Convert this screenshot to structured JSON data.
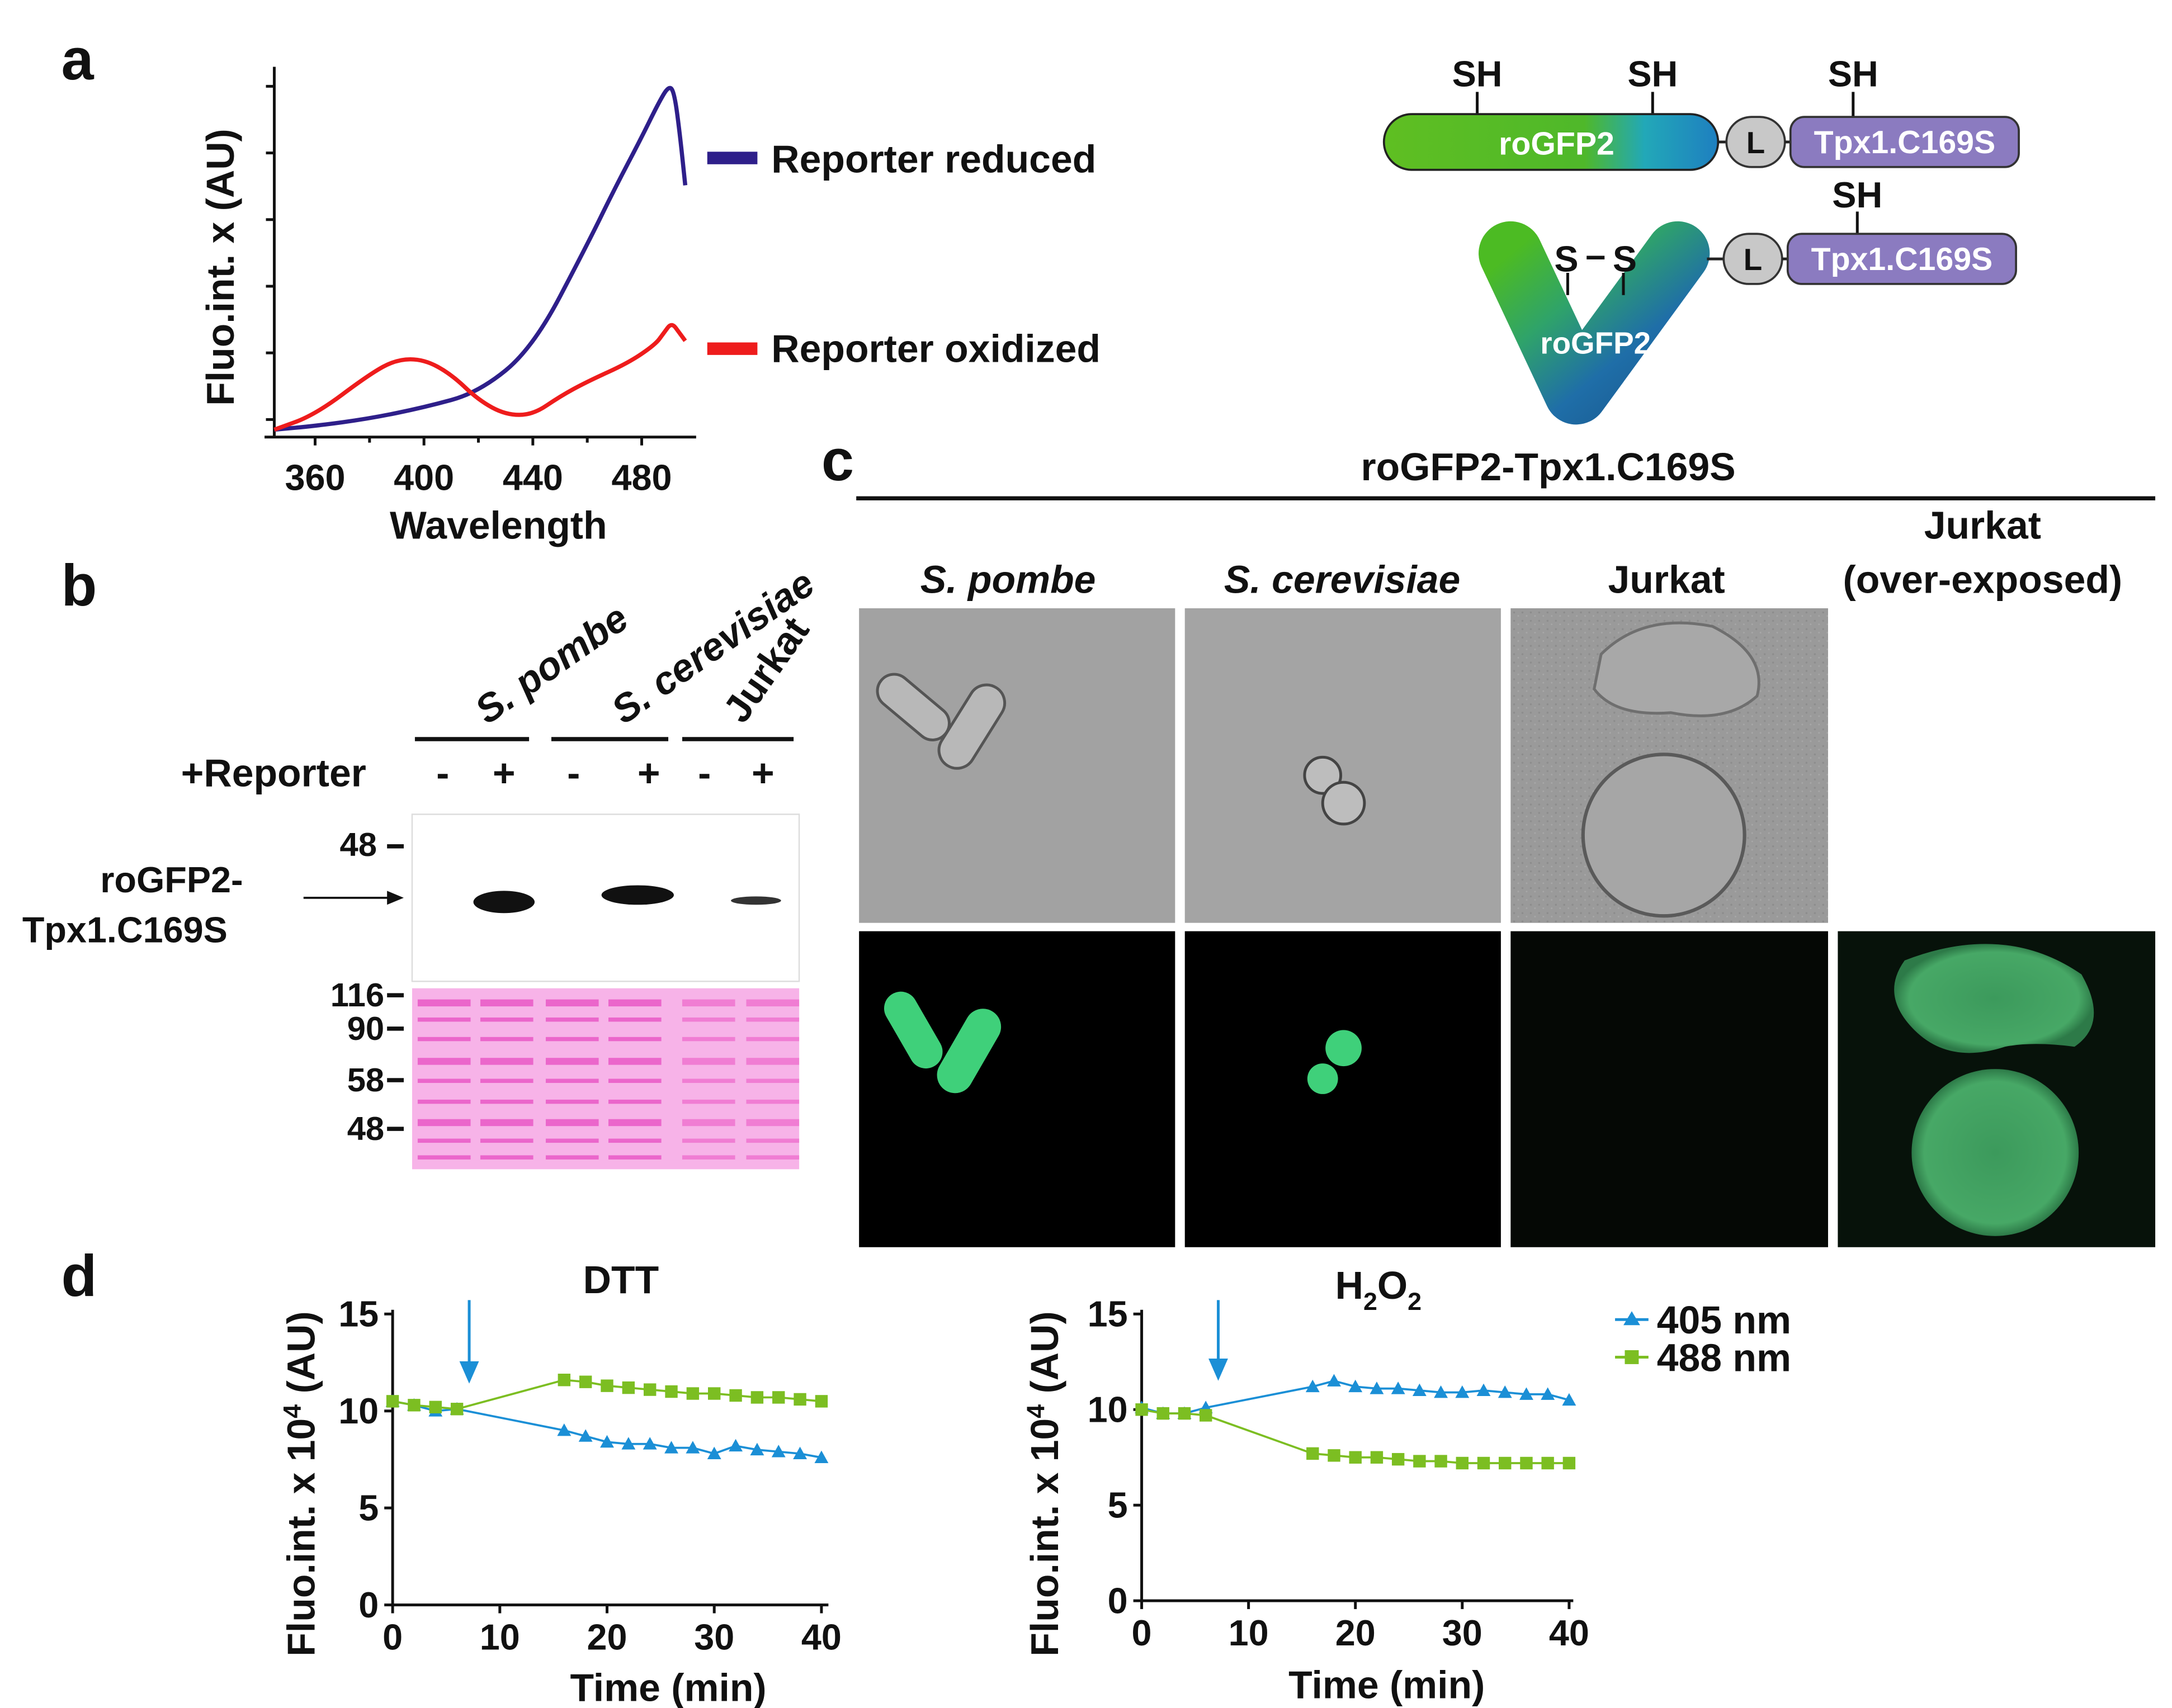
{
  "colors": {
    "reduced": "#2e1f8a",
    "oxidized": "#ee1c1c",
    "blue405": "#1b8fd6",
    "green488": "#7cbe22",
    "rogfp_green": "#58c01e",
    "rogfp_blue": "#1c6aa3",
    "tpx_purple": "#8b7bc0",
    "linker_gray": "#c8c8c8",
    "ponceau": "#f06ad4"
  },
  "panels": {
    "a": "a",
    "b": "b",
    "c": "c",
    "d": "d"
  },
  "panel_a": {
    "ylabel": "Fluo.int. x (AU)",
    "xlabel": "Wavelength",
    "xticks": [
      "360",
      "400",
      "440",
      "480"
    ],
    "legend_reduced": "Reporter reduced",
    "legend_oxidized": "Reporter oxidized"
  },
  "schematic": {
    "sh": "SH",
    "rogfp2": "roGFP2",
    "linker": "L",
    "tpx": "Tpx1.C169S",
    "ss_s": "S",
    "ss_bond": "–"
  },
  "panel_b": {
    "lanes": [
      "S. pombe",
      "S. cerevisiae",
      "Jurkat"
    ],
    "reporter_label": "+Reporter",
    "signs": [
      "-",
      "+",
      "-",
      "+",
      "-",
      "+"
    ],
    "blot_marker_48": "48",
    "band_label_1": "roGFP2-",
    "band_label_2": "Tpx1.C169S",
    "ponceau_markers": [
      "116",
      "90",
      "58",
      "48"
    ]
  },
  "panel_c": {
    "title": "roGFP2-Tpx1.C169S",
    "col1": "S. pombe",
    "col2": "S. cerevisiae",
    "col3": "Jurkat",
    "col4_line1": "Jurkat",
    "col4_line2": "(over-exposed)"
  },
  "panel_d": {
    "left_title": "DTT",
    "right_title_main": "H",
    "right_title_sub1": "2",
    "right_title_mid": "O",
    "right_title_sub2": "2",
    "ylabel_pre": "Fluo.int. x 10",
    "ylabel_sup": "4",
    "ylabel_post": " (AU)",
    "xlabel": "Time (min)",
    "xticks": [
      "0",
      "10",
      "20",
      "30",
      "40"
    ],
    "yticks": [
      "0",
      "5",
      "10",
      "15"
    ],
    "legend_405": "405 nm",
    "legend_488": "488 nm"
  },
  "chart_data": [
    {
      "type": "line",
      "panel": "a",
      "xlabel": "Wavelength",
      "ylabel": "Fluo.int. x (AU)",
      "xlim": [
        345,
        500
      ],
      "ylim": [
        0,
        100
      ],
      "series": [
        {
          "name": "Reporter reduced",
          "x": [
            345,
            360,
            380,
            400,
            420,
            440,
            460,
            470,
            480,
            486,
            490,
            492,
            494,
            496
          ],
          "y": [
            2,
            3,
            5,
            8,
            12,
            24,
            52,
            67,
            81,
            90,
            95,
            93,
            82,
            68
          ]
        },
        {
          "name": "Reporter oxidized",
          "x": [
            345,
            360,
            380,
            390,
            400,
            410,
            420,
            430,
            440,
            450,
            460,
            475,
            485,
            488,
            491,
            494,
            496
          ],
          "y": [
            2,
            6,
            17,
            21,
            21,
            17,
            10,
            6,
            6,
            11,
            15,
            20,
            25,
            28,
            31,
            28,
            26
          ]
        }
      ]
    },
    {
      "type": "line",
      "panel": "d",
      "title": "DTT",
      "xlabel": "Time (min)",
      "ylabel": "Fluo.int. x 10^4 (AU)",
      "xlim": [
        0,
        40
      ],
      "ylim": [
        0,
        15
      ],
      "series": [
        {
          "name": "405 nm",
          "x": [
            0,
            2,
            4,
            6,
            16,
            18,
            20,
            22,
            24,
            26,
            28,
            30,
            32,
            34,
            36,
            38,
            40
          ],
          "y": [
            10.5,
            10.3,
            10,
            10.1,
            9,
            8.7,
            8.4,
            8.3,
            8.3,
            8.1,
            8.1,
            7.8,
            8.2,
            8,
            7.9,
            7.8,
            7.6
          ]
        },
        {
          "name": "488 nm",
          "x": [
            0,
            2,
            4,
            6,
            16,
            18,
            20,
            22,
            24,
            26,
            28,
            30,
            32,
            34,
            36,
            38,
            40
          ],
          "y": [
            10.5,
            10.3,
            10.2,
            10.1,
            11.6,
            11.5,
            11.3,
            11.2,
            11.1,
            11,
            10.9,
            10.9,
            10.8,
            10.7,
            10.7,
            10.6,
            10.5
          ]
        }
      ]
    },
    {
      "type": "line",
      "panel": "d",
      "xlabel": "Time (min)",
      "ylabel": "Fluo.int. x 10^4 (AU)",
      "xlim": [
        0,
        40
      ],
      "ylim": [
        0,
        15
      ],
      "series": [
        {
          "name": "405 nm",
          "x": [
            0,
            2,
            4,
            6,
            16,
            18,
            20,
            22,
            24,
            26,
            28,
            30,
            32,
            34,
            36,
            38,
            40
          ],
          "y": [
            10.1,
            9.8,
            9.8,
            10.1,
            11.2,
            11.5,
            11.2,
            11.1,
            11.1,
            11,
            10.9,
            10.9,
            11,
            10.9,
            10.8,
            10.8,
            10.5
          ]
        },
        {
          "name": "488 nm",
          "x": [
            0,
            2,
            4,
            6,
            16,
            18,
            20,
            22,
            24,
            26,
            28,
            30,
            32,
            34,
            36,
            38,
            40
          ],
          "y": [
            10,
            9.8,
            9.8,
            9.7,
            7.7,
            7.6,
            7.5,
            7.5,
            7.4,
            7.3,
            7.3,
            7.2,
            7.2,
            7.2,
            7.2,
            7.2,
            7.2
          ]
        }
      ]
    }
  ]
}
